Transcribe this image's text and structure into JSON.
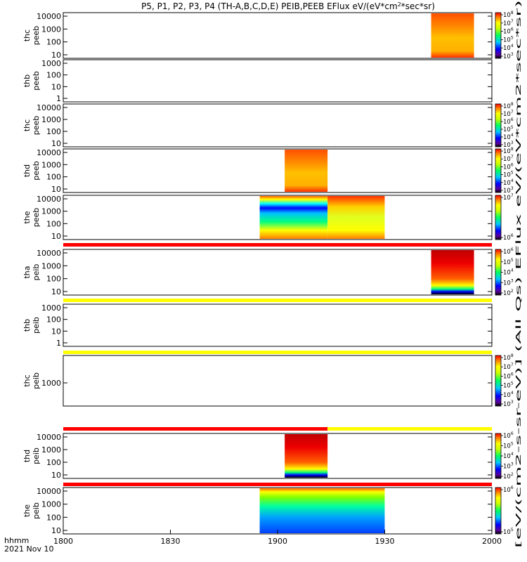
{
  "chart_data": {
    "type": "heatmap",
    "title": "P5, P1, P2, P3, P4 (TH-A,B,C,D,E) PEIB,PEEB EFlux eV/(eV*cm",
    "title_sup": "2",
    "title_tail": "*sec*sr)",
    "x_axis": {
      "range": [
        1800,
        2000
      ],
      "ticks": [
        "1800",
        "1830",
        "1900",
        "1930",
        "2000"
      ],
      "label_line1": "hhmm",
      "label_line2": "2021 Nov 10"
    },
    "panels": [
      {
        "label": [
          "thc",
          "peeb"
        ],
        "yticks": [
          "10",
          "100",
          "1000",
          "10000"
        ],
        "colorbar": [
          "3",
          "4",
          "5",
          "6",
          "7",
          "8"
        ],
        "data_blocks": [
          {
            "x": [
              1943,
              1955
            ],
            "style": "warm"
          }
        ],
        "strip_above": null
      },
      {
        "label": [
          "thb",
          "peeb"
        ],
        "yticks": [
          "1",
          "10",
          "100",
          "1000"
        ],
        "colorbar": [],
        "data_blocks": [],
        "strip_above": null
      },
      {
        "label": [
          "thc",
          "peeb"
        ],
        "yticks": [
          "10",
          "100",
          "1000",
          "10000"
        ],
        "colorbar": [
          "3",
          "4",
          "5",
          "6",
          "7",
          "8"
        ],
        "data_blocks": [],
        "strip_above": null
      },
      {
        "label": [
          "thd",
          "peeb"
        ],
        "yticks": [
          "10",
          "100",
          "1000",
          "10000"
        ],
        "colorbar": [
          "3",
          "4",
          "5",
          "6",
          "7",
          "8"
        ],
        "data_blocks": [
          {
            "x": [
              1902,
              1914
            ],
            "style": "warm"
          }
        ],
        "strip_above": null
      },
      {
        "label": [
          "the",
          "peeb"
        ],
        "yticks": [
          "10",
          "100",
          "1000",
          "10000"
        ],
        "colorbar": [
          "6",
          "7"
        ],
        "data_blocks": [
          {
            "x": [
              1855,
              1914
            ],
            "style": "mixed"
          },
          {
            "x": [
              1914,
              1930
            ],
            "style": "warm2"
          }
        ],
        "strip_above": null
      },
      {
        "label": [
          "tha",
          "peib"
        ],
        "yticks": [
          "10",
          "100",
          "1000",
          "10000"
        ],
        "colorbar": [
          "2",
          "3",
          "4",
          "5",
          "6"
        ],
        "data_blocks": [
          {
            "x": [
              1943,
              1955
            ],
            "style": "hot"
          }
        ],
        "strip_above": "red"
      },
      {
        "label": [
          "thb",
          "peib"
        ],
        "yticks": [
          "1",
          "10",
          "100",
          "1000"
        ],
        "colorbar": [],
        "data_blocks": [],
        "strip_above": "yellow"
      },
      {
        "label": [
          "thc",
          "peib"
        ],
        "yticks": [
          "1000"
        ],
        "colorbar": [
          "3",
          "4",
          "5",
          "6",
          "7",
          "8"
        ],
        "data_blocks": [],
        "strip_above": "yellow"
      },
      {
        "label": [
          "thd",
          "peib"
        ],
        "yticks": [
          "10",
          "100",
          "1000",
          "10000"
        ],
        "colorbar": [
          "2",
          "3",
          "4",
          "5",
          "6"
        ],
        "data_blocks": [
          {
            "x": [
              1902,
              1914
            ],
            "style": "hot"
          }
        ],
        "strip_above": "redyellow"
      },
      {
        "label": [
          "the",
          "peib"
        ],
        "yticks": [
          "10",
          "100",
          "1000",
          "10000"
        ],
        "colorbar": [
          "5",
          "6"
        ],
        "data_blocks": [
          {
            "x": [
              1855,
              1930
            ],
            "style": "cool"
          }
        ],
        "strip_above": "red"
      }
    ],
    "colorbar_label": "[eV/(cm2-s-sr-eV)] (All Qs) EFlux eV/(eV*cm2*sec*sr)",
    "grid": false,
    "legend": "right colorbars"
  },
  "colors": {
    "red": "#ff0000",
    "yellow": "#ffff00",
    "text": "#000000"
  }
}
